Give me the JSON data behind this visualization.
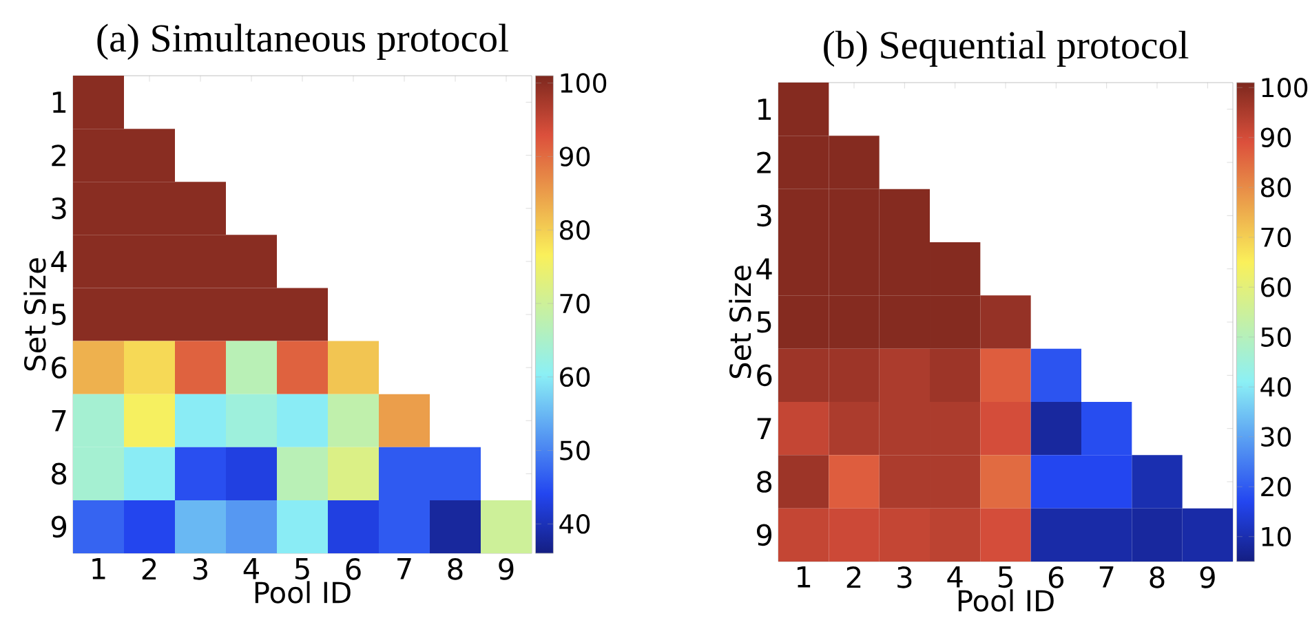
{
  "chart_data": [
    {
      "type": "heatmap",
      "title": "(a) Simultaneous protocol",
      "xlabel": "Pool ID",
      "ylabel": "Set Size",
      "categories": [
        "1",
        "2",
        "3",
        "4",
        "5",
        "6",
        "7",
        "8",
        "9"
      ],
      "y_categories": [
        "1",
        "2",
        "3",
        "4",
        "5",
        "6",
        "7",
        "8",
        "9"
      ],
      "cells": [
        [
          100,
          null,
          null,
          null,
          null,
          null,
          null,
          null,
          null
        ],
        [
          100,
          100,
          null,
          null,
          null,
          null,
          null,
          null,
          null
        ],
        [
          100,
          100,
          100,
          null,
          null,
          null,
          null,
          null,
          null
        ],
        [
          100,
          100,
          100,
          100,
          null,
          null,
          null,
          null,
          null
        ],
        [
          100,
          100,
          100,
          100,
          100,
          null,
          null,
          null,
          null
        ],
        [
          83,
          79,
          91,
          67,
          91,
          81,
          null,
          null,
          null
        ],
        [
          64,
          76,
          60,
          63,
          60,
          68,
          85,
          null,
          null
        ],
        [
          64,
          60,
          45,
          43,
          67,
          72,
          46,
          46,
          null
        ],
        [
          47,
          44,
          55,
          52,
          60,
          43,
          46,
          38,
          70
        ]
      ],
      "clim": [
        36,
        101
      ],
      "cticks": [
        40,
        50,
        60,
        70,
        80,
        90,
        100
      ]
    },
    {
      "type": "heatmap",
      "title": "(b) Sequential protocol",
      "xlabel": "Pool ID",
      "ylabel": "Set Size",
      "categories": [
        "1",
        "2",
        "3",
        "4",
        "5",
        "6",
        "7",
        "8",
        "9"
      ],
      "y_categories": [
        "1",
        "2",
        "3",
        "4",
        "5",
        "6",
        "7",
        "8",
        "9"
      ],
      "cells": [
        [
          100,
          null,
          null,
          null,
          null,
          null,
          null,
          null,
          null
        ],
        [
          100,
          100,
          null,
          null,
          null,
          null,
          null,
          null,
          null
        ],
        [
          100,
          100,
          100,
          null,
          null,
          null,
          null,
          null,
          null
        ],
        [
          100,
          100,
          100,
          100,
          null,
          null,
          null,
          null,
          null
        ],
        [
          100,
          100,
          100,
          100,
          98,
          null,
          null,
          null,
          null
        ],
        [
          97,
          97,
          95,
          97,
          87,
          19,
          null,
          null,
          null
        ],
        [
          92,
          95,
          95,
          95,
          90,
          8,
          18,
          null,
          null
        ],
        [
          97,
          87,
          95,
          95,
          85,
          17,
          17,
          10,
          null
        ],
        [
          92,
          91,
          92,
          93,
          90,
          9,
          9,
          8,
          9
        ]
      ],
      "clim": [
        5,
        101
      ],
      "cticks": [
        10,
        20,
        30,
        40,
        50,
        60,
        70,
        80,
        90,
        100
      ]
    }
  ]
}
